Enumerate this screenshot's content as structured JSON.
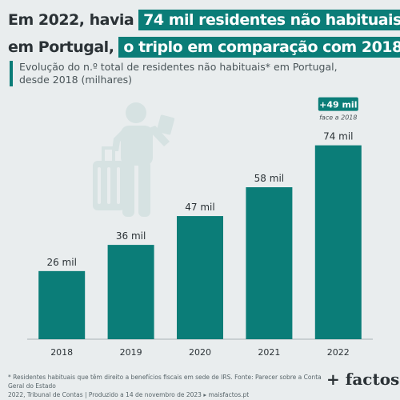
{
  "headline": {
    "part1": "Em 2022, havia",
    "highlight1": "74 mil residentes não habituais",
    "part2": "em Portugal,",
    "highlight2": "o triplo em comparação com 2018"
  },
  "subtitle": {
    "line1": "Evolução do n.º total de residentes não habituais* em Portugal,",
    "line2": "desde 2018 (milhares)"
  },
  "chart_data": {
    "type": "bar",
    "categories": [
      "2018",
      "2019",
      "2020",
      "2021",
      "2022"
    ],
    "values": [
      26,
      36,
      47,
      58,
      74
    ],
    "data_labels": [
      "26 mil",
      "36 mil",
      "47 mil",
      "58 mil",
      "74 mil"
    ],
    "ylim": [
      0,
      80
    ],
    "bar_color": "#0b7d78",
    "grid": false,
    "annotation": {
      "category": "2022",
      "badge": "+49 mil",
      "note": "face a 2018"
    }
  },
  "footnote": {
    "line1": "* Residentes habituais que têm direito a benefícios fiscais em sede de IRS. Fonte: Parecer sobre a Conta Geral do Estado",
    "line2": "2022, Tribunal de Contas | Produzido a 14 de novembro de 2023 ▸ maisfactos.pt"
  },
  "logo": {
    "text": "+ factos"
  },
  "colors": {
    "accent": "#0b7d78",
    "background": "#e9edee",
    "text": "#2b3236",
    "illustration": "#d6e2e2"
  },
  "illustration": {
    "icon": "traveler-with-suitcase-icon"
  }
}
